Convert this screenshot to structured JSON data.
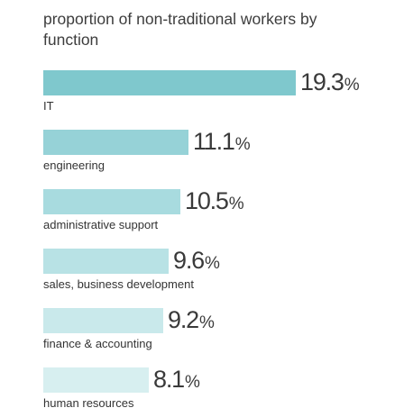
{
  "chart_data": {
    "type": "bar",
    "orientation": "horizontal",
    "title": "proportion of non-traditional workers by function",
    "categories": [
      "IT",
      "engineering",
      "administrative support",
      "sales, business development",
      "finance & accounting",
      "human resources"
    ],
    "values": [
      19.3,
      11.1,
      10.5,
      9.6,
      9.2,
      8.1
    ],
    "value_labels": [
      "19.3",
      "11.1",
      "10.5",
      "9.6",
      "9.2",
      "8.1"
    ],
    "unit": "%",
    "bar_colors": [
      "#7fc8cd",
      "#96d2d7",
      "#a8dbdf",
      "#b8e2e5",
      "#c9e9eb",
      "#d7eff0"
    ],
    "grid": false,
    "legend": "none"
  }
}
